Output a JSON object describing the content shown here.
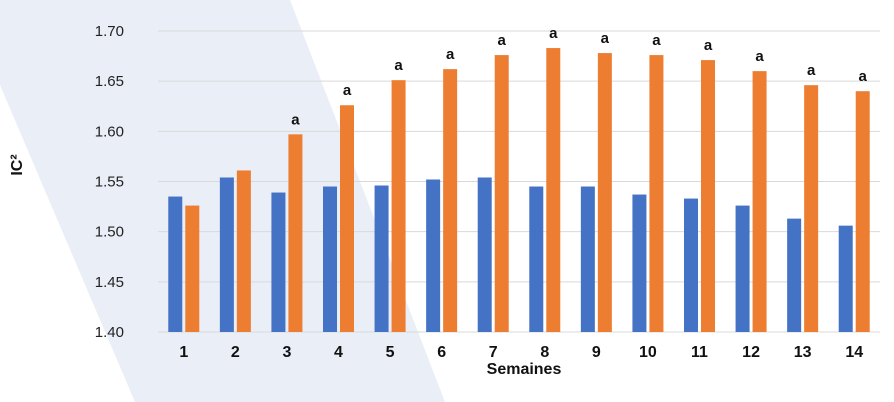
{
  "chart_data": {
    "type": "bar",
    "xlabel": "Semaines",
    "ylabel": "IC²",
    "ylim": [
      1.4,
      1.7
    ],
    "yticks": [
      "1.40",
      "1.45",
      "1.50",
      "1.55",
      "1.60",
      "1.65",
      "1.70"
    ],
    "grid": true,
    "categories": [
      "1",
      "2",
      "3",
      "4",
      "5",
      "6",
      "7",
      "8",
      "9",
      "10",
      "11",
      "12",
      "13",
      "14"
    ],
    "series": [
      {
        "color": "#4472C4",
        "values": [
          1.535,
          1.554,
          1.539,
          1.545,
          1.546,
          1.552,
          1.554,
          1.545,
          1.545,
          1.537,
          1.533,
          1.526,
          1.513,
          1.506
        ]
      },
      {
        "color": "#ED7D31",
        "values": [
          1.526,
          1.561,
          1.597,
          1.626,
          1.651,
          1.662,
          1.676,
          1.683,
          1.678,
          1.676,
          1.671,
          1.66,
          1.646,
          1.64
        ],
        "annotations": [
          "",
          "",
          "a",
          "a",
          "a",
          "a",
          "a",
          "a",
          "a",
          "a",
          "a",
          "a",
          "a",
          "a"
        ]
      }
    ],
    "background_band_color": "#E9EEF7",
    "gridline_color": "#D9D9D9"
  }
}
